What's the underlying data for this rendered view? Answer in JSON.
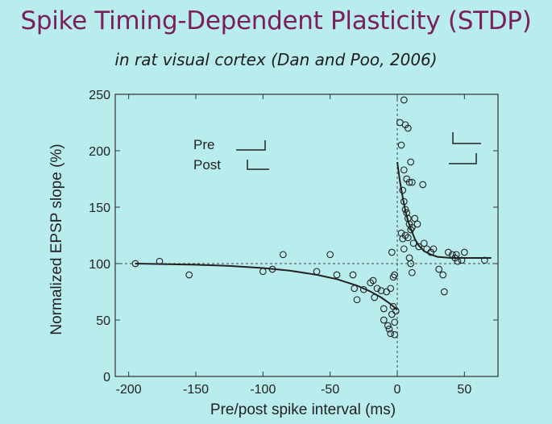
{
  "slide": {
    "title": "Spike Timing-Dependent Plasticity (STDP)",
    "subtitle": "in rat visual cortex (Dan and Poo, 2006)"
  },
  "chart_data": {
    "type": "scatter",
    "title": "",
    "xlabel": "Pre/post spike interval (ms)",
    "ylabel": "Normalized EPSP slope (%)",
    "xlim": [
      -210,
      75
    ],
    "ylim": [
      0,
      250
    ],
    "xticks": [
      -200,
      -150,
      -100,
      -50,
      0,
      50
    ],
    "yticks": [
      0,
      50,
      100,
      150,
      200,
      250
    ],
    "xtick_labels": [
      "-200",
      "-150",
      "-100",
      "-50",
      "0",
      "50"
    ],
    "ytick_labels": [
      "0",
      "50",
      "100",
      "150",
      "200",
      "250"
    ],
    "reference_lines": {
      "y": 100,
      "x": 0,
      "style": "dashed"
    },
    "grid": false,
    "inset_legend": {
      "pre_label": "Pre",
      "post_label": "Post"
    },
    "points": [
      {
        "x": -195,
        "y": 100
      },
      {
        "x": -177,
        "y": 102
      },
      {
        "x": -155,
        "y": 90
      },
      {
        "x": -100,
        "y": 93
      },
      {
        "x": -93,
        "y": 95
      },
      {
        "x": -85,
        "y": 108
      },
      {
        "x": -60,
        "y": 93
      },
      {
        "x": -50,
        "y": 108
      },
      {
        "x": -45,
        "y": 90
      },
      {
        "x": -33,
        "y": 90
      },
      {
        "x": -32,
        "y": 78
      },
      {
        "x": -30,
        "y": 68
      },
      {
        "x": -25,
        "y": 77
      },
      {
        "x": -20,
        "y": 83
      },
      {
        "x": -18,
        "y": 85
      },
      {
        "x": -17,
        "y": 70
      },
      {
        "x": -15,
        "y": 78
      },
      {
        "x": -12,
        "y": 76
      },
      {
        "x": -10,
        "y": 60
      },
      {
        "x": -10,
        "y": 50
      },
      {
        "x": -8,
        "y": 75
      },
      {
        "x": -7,
        "y": 45
      },
      {
        "x": -6,
        "y": 42
      },
      {
        "x": -5,
        "y": 78
      },
      {
        "x": -5,
        "y": 38
      },
      {
        "x": -4,
        "y": 55
      },
      {
        "x": -3,
        "y": 62
      },
      {
        "x": -2,
        "y": 48
      },
      {
        "x": -2,
        "y": 37
      },
      {
        "x": -1,
        "y": 58
      },
      {
        "x": -3,
        "y": 88
      },
      {
        "x": -2,
        "y": 90
      },
      {
        "x": -4,
        "y": 110
      },
      {
        "x": 2,
        "y": 225
      },
      {
        "x": 3,
        "y": 205
      },
      {
        "x": 5,
        "y": 245
      },
      {
        "x": 6,
        "y": 223
      },
      {
        "x": 8,
        "y": 220
      },
      {
        "x": 5,
        "y": 183
      },
      {
        "x": 7,
        "y": 175
      },
      {
        "x": 9,
        "y": 172
      },
      {
        "x": 11,
        "y": 172
      },
      {
        "x": 10,
        "y": 190
      },
      {
        "x": 4,
        "y": 165
      },
      {
        "x": 5,
        "y": 155
      },
      {
        "x": 6,
        "y": 148
      },
      {
        "x": 7,
        "y": 145
      },
      {
        "x": 8,
        "y": 140
      },
      {
        "x": 9,
        "y": 135
      },
      {
        "x": 10,
        "y": 130
      },
      {
        "x": 11,
        "y": 132
      },
      {
        "x": 3,
        "y": 127
      },
      {
        "x": 4,
        "y": 122
      },
      {
        "x": 6,
        "y": 125
      },
      {
        "x": 8,
        "y": 123
      },
      {
        "x": 12,
        "y": 118
      },
      {
        "x": 13,
        "y": 140
      },
      {
        "x": 5,
        "y": 113
      },
      {
        "x": 9,
        "y": 105
      },
      {
        "x": 10,
        "y": 100
      },
      {
        "x": 11,
        "y": 92
      },
      {
        "x": 15,
        "y": 135
      },
      {
        "x": 16,
        "y": 115
      },
      {
        "x": 19,
        "y": 170
      },
      {
        "x": 20,
        "y": 118
      },
      {
        "x": 22,
        "y": 113
      },
      {
        "x": 25,
        "y": 110
      },
      {
        "x": 27,
        "y": 113
      },
      {
        "x": 31,
        "y": 95
      },
      {
        "x": 34,
        "y": 90
      },
      {
        "x": 35,
        "y": 75
      },
      {
        "x": 38,
        "y": 110
      },
      {
        "x": 41,
        "y": 108
      },
      {
        "x": 43,
        "y": 105
      },
      {
        "x": 44,
        "y": 108
      },
      {
        "x": 45,
        "y": 102
      },
      {
        "x": 48,
        "y": 103
      },
      {
        "x": 50,
        "y": 110
      },
      {
        "x": 65,
        "y": 103
      }
    ],
    "fit_curve": {
      "style": "solid",
      "ltd_branch": [
        [
          -195,
          100
        ],
        [
          -175,
          99.6
        ],
        [
          -150,
          99.0
        ],
        [
          -125,
          97.9
        ],
        [
          -100,
          96.1
        ],
        [
          -80,
          93.8
        ],
        [
          -60,
          90.1
        ],
        [
          -45,
          86.2
        ],
        [
          -30,
          80.5
        ],
        [
          -20,
          75.3
        ],
        [
          -12,
          70.0
        ],
        [
          -6,
          65.0
        ],
        [
          -2,
          61.1
        ],
        [
          0,
          59.0
        ]
      ],
      "ltp_branch": [
        [
          0,
          190
        ],
        [
          1,
          181
        ],
        [
          2,
          173
        ],
        [
          4,
          159
        ],
        [
          6,
          147
        ],
        [
          8,
          138
        ],
        [
          10,
          131
        ],
        [
          13,
          122
        ],
        [
          16,
          116
        ],
        [
          20,
          111
        ],
        [
          25,
          108
        ],
        [
          30,
          106
        ],
        [
          40,
          105
        ],
        [
          50,
          105
        ],
        [
          70,
          105
        ]
      ]
    }
  }
}
